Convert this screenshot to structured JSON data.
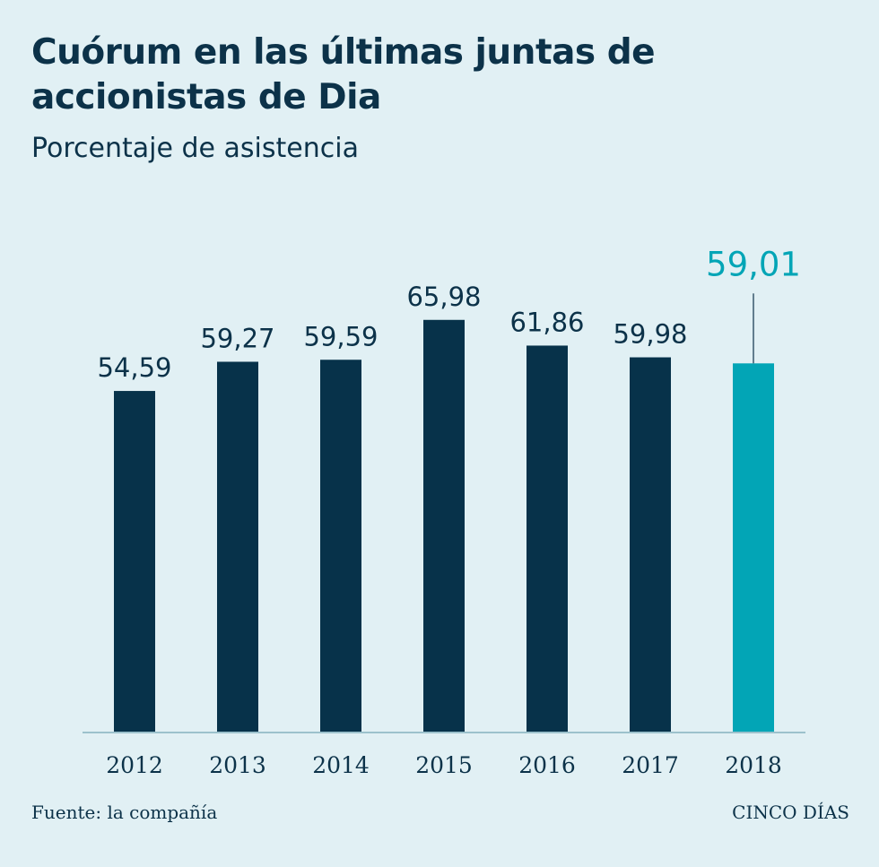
{
  "title": "Cuórum en las últimas juntas de accionistas de Dia",
  "subtitle": "Porcentaje de asistencia",
  "footer": {
    "source": "Fuente: la compañía",
    "brand": "CINCO DÍAS"
  },
  "colors": {
    "bar": "#07324a",
    "highlight": "#02a5b6",
    "text": "#0c3249",
    "axis": "#9cc1cc"
  },
  "chart_data": {
    "type": "bar",
    "categories": [
      "2012",
      "2013",
      "2014",
      "2015",
      "2016",
      "2017",
      "2018"
    ],
    "values": [
      54.59,
      59.27,
      59.59,
      65.98,
      61.86,
      59.98,
      59.01
    ],
    "value_labels": [
      "54,59",
      "59,27",
      "59,59",
      "65,98",
      "61,86",
      "59,98",
      "59,01"
    ],
    "highlight_index": 6,
    "title": "Cuórum en las últimas juntas de accionistas de Dia",
    "subtitle": "Porcentaje de asistencia",
    "xlabel": "",
    "ylabel": "",
    "ylim": [
      0,
      100
    ],
    "grid": false,
    "legend": "none"
  }
}
